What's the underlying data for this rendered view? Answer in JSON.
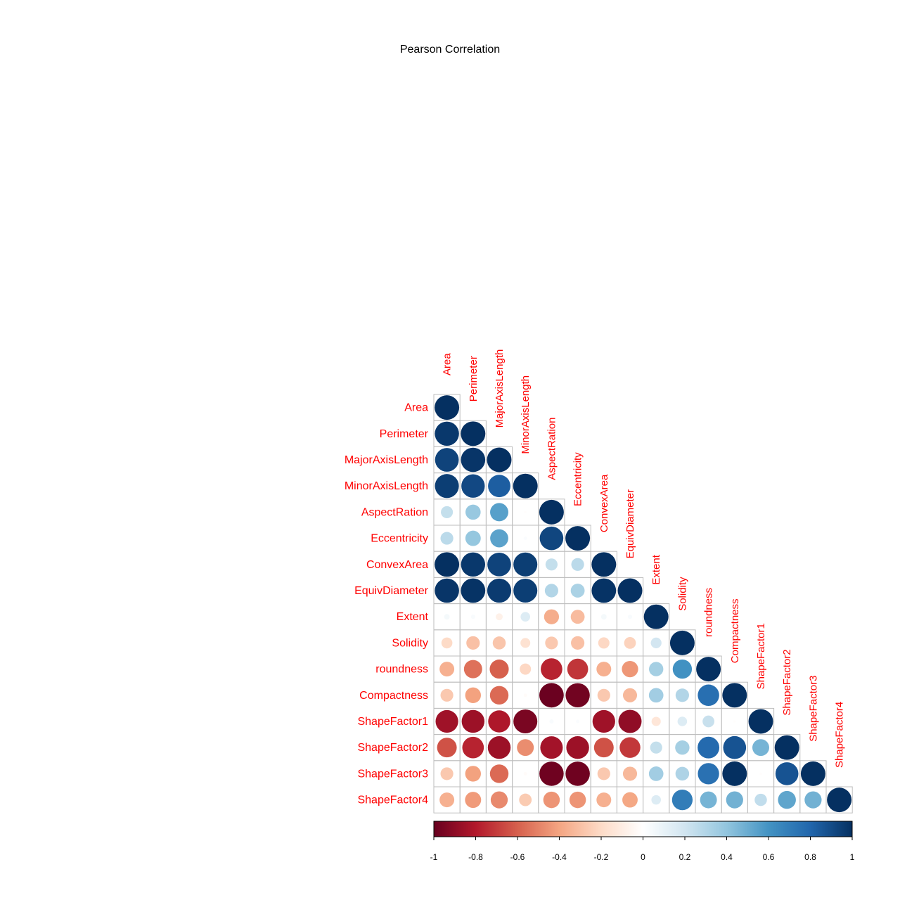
{
  "chart_data": {
    "type": "heatmap",
    "title": "Pearson Correlation",
    "layout": "lower-triangular correlation matrix, circles sized and colored by coefficient",
    "variables": [
      "Area",
      "Perimeter",
      "MajorAxisLength",
      "MinorAxisLength",
      "AspectRation",
      "Eccentricity",
      "ConvexArea",
      "EquivDiameter",
      "Extent",
      "Solidity",
      "roundness",
      "Compactness",
      "ShapeFactor1",
      "ShapeFactor2",
      "ShapeFactor3",
      "ShapeFactor4"
    ],
    "matrix": [
      [
        1.0
      ],
      [
        0.97,
        1.0
      ],
      [
        0.93,
        0.98,
        1.0
      ],
      [
        0.95,
        0.91,
        0.83,
        1.0
      ],
      [
        0.24,
        0.38,
        0.55,
        -0.01,
        1.0
      ],
      [
        0.27,
        0.39,
        0.54,
        0.02,
        0.92,
        1.0
      ],
      [
        1.0,
        0.97,
        0.93,
        0.95,
        0.24,
        0.27,
        1.0
      ],
      [
        0.98,
        0.99,
        0.96,
        0.95,
        0.3,
        0.32,
        0.99,
        1.0
      ],
      [
        0.05,
        0.03,
        -0.08,
        0.15,
        -0.37,
        -0.32,
        0.05,
        0.03,
        1.0
      ],
      [
        -0.2,
        -0.3,
        -0.28,
        -0.16,
        -0.27,
        -0.3,
        -0.21,
        -0.23,
        0.19,
        1.0
      ],
      [
        -0.36,
        -0.55,
        -0.6,
        -0.21,
        -0.77,
        -0.72,
        -0.36,
        -0.44,
        0.34,
        0.61,
        1.0
      ],
      [
        -0.27,
        -0.41,
        -0.57,
        -0.02,
        -0.99,
        -0.97,
        -0.27,
        -0.33,
        0.35,
        0.3,
        0.76,
        1.0
      ],
      [
        -0.85,
        -0.86,
        -0.81,
        -0.95,
        0.03,
        0.02,
        -0.85,
        -0.89,
        -0.14,
        0.15,
        0.23,
        -0.01,
        1.0
      ],
      [
        -0.64,
        -0.77,
        -0.86,
        -0.47,
        -0.84,
        -0.86,
        -0.64,
        -0.71,
        0.24,
        0.34,
        0.78,
        0.87,
        0.47,
        1.0
      ],
      [
        -0.27,
        -0.41,
        -0.57,
        -0.02,
        -0.98,
        -0.98,
        -0.27,
        -0.33,
        0.35,
        0.31,
        0.75,
        1.0,
        -0.01,
        0.87,
        1.0
      ],
      [
        -0.36,
        -0.43,
        -0.48,
        -0.26,
        -0.45,
        -0.45,
        -0.36,
        -0.39,
        0.15,
        0.7,
        0.47,
        0.48,
        0.25,
        0.53,
        0.48,
        1.0
      ]
    ],
    "colorbar": {
      "min": -1,
      "max": 1,
      "ticks": [
        "-1",
        "-0.8",
        "-0.6",
        "-0.4",
        "-0.2",
        "0",
        "0.2",
        "0.4",
        "0.6",
        "0.8",
        "1"
      ]
    },
    "colors": {
      "label": "#ff0000",
      "grid": "#bebebe",
      "palette": [
        "#67001f",
        "#b2182b",
        "#d6604d",
        "#f4a582",
        "#fddbc7",
        "#ffffff",
        "#d1e5f0",
        "#92c5de",
        "#4393c3",
        "#2166ac",
        "#053061"
      ]
    }
  }
}
